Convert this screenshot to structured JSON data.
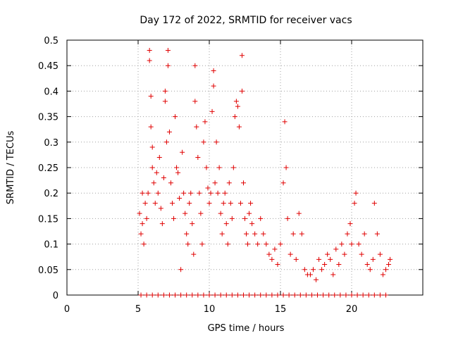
{
  "chart_data": {
    "type": "scatter",
    "title": "Day 172 of 2022, SRMTID for receiver vacs",
    "xlabel": "GPS time / hours",
    "ylabel": "SRMTID / TECUs",
    "xlim": [
      0,
      25
    ],
    "ylim": [
      0,
      0.5
    ],
    "grid": true,
    "x_ticks": [
      0,
      5,
      10,
      15,
      20
    ],
    "x_tick_labels": [
      "0",
      "5",
      "10",
      "15",
      "20"
    ],
    "y_ticks": [
      0,
      0.05,
      0.1,
      0.15,
      0.2,
      0.25,
      0.3,
      0.35,
      0.4,
      0.45,
      0.5
    ],
    "y_tick_labels": [
      "0",
      "0.05",
      "0.1",
      "0.15",
      "0.2",
      "0.25",
      "0.3",
      "0.35",
      "0.4",
      "0.45",
      "0.5"
    ],
    "marker": "+",
    "series": [
      {
        "name": "SRMTID",
        "color": "#e00000",
        "points": [
          [
            5.1,
            0.16
          ],
          [
            5.2,
            0.12
          ],
          [
            5.3,
            0.14
          ],
          [
            5.3,
            0.2
          ],
          [
            5.4,
            0.1
          ],
          [
            5.5,
            0.18
          ],
          [
            5.6,
            0.15
          ],
          [
            5.7,
            0.2
          ],
          [
            5.8,
            0.48
          ],
          [
            5.8,
            0.46
          ],
          [
            5.9,
            0.39
          ],
          [
            5.9,
            0.33
          ],
          [
            6.0,
            0.29
          ],
          [
            6.0,
            0.25
          ],
          [
            6.1,
            0.22
          ],
          [
            6.2,
            0.18
          ],
          [
            6.3,
            0.24
          ],
          [
            6.4,
            0.2
          ],
          [
            6.5,
            0.27
          ],
          [
            6.6,
            0.17
          ],
          [
            6.7,
            0.14
          ],
          [
            6.8,
            0.23
          ],
          [
            6.9,
            0.38
          ],
          [
            6.9,
            0.4
          ],
          [
            7.0,
            0.3
          ],
          [
            7.1,
            0.48
          ],
          [
            7.1,
            0.45
          ],
          [
            7.2,
            0.32
          ],
          [
            7.3,
            0.22
          ],
          [
            7.4,
            0.18
          ],
          [
            7.5,
            0.15
          ],
          [
            7.6,
            0.35
          ],
          [
            7.7,
            0.25
          ],
          [
            7.8,
            0.24
          ],
          [
            7.9,
            0.19
          ],
          [
            8.0,
            0.05
          ],
          [
            8.1,
            0.28
          ],
          [
            8.2,
            0.2
          ],
          [
            8.3,
            0.16
          ],
          [
            8.4,
            0.12
          ],
          [
            8.5,
            0.1
          ],
          [
            8.6,
            0.18
          ],
          [
            8.7,
            0.2
          ],
          [
            8.8,
            0.14
          ],
          [
            8.9,
            0.08
          ],
          [
            9.0,
            0.45
          ],
          [
            9.0,
            0.38
          ],
          [
            9.1,
            0.33
          ],
          [
            9.2,
            0.27
          ],
          [
            9.3,
            0.2
          ],
          [
            9.4,
            0.16
          ],
          [
            9.5,
            0.1
          ],
          [
            9.6,
            0.3
          ],
          [
            9.7,
            0.34
          ],
          [
            9.8,
            0.25
          ],
          [
            9.9,
            0.21
          ],
          [
            10.0,
            0.18
          ],
          [
            10.1,
            0.2
          ],
          [
            10.2,
            0.36
          ],
          [
            10.3,
            0.44
          ],
          [
            10.3,
            0.41
          ],
          [
            10.4,
            0.22
          ],
          [
            10.5,
            0.3
          ],
          [
            10.6,
            0.2
          ],
          [
            10.7,
            0.25
          ],
          [
            10.8,
            0.16
          ],
          [
            10.9,
            0.12
          ],
          [
            11.0,
            0.18
          ],
          [
            11.1,
            0.2
          ],
          [
            11.2,
            0.14
          ],
          [
            11.3,
            0.1
          ],
          [
            11.4,
            0.22
          ],
          [
            11.5,
            0.18
          ],
          [
            11.6,
            0.15
          ],
          [
            11.7,
            0.25
          ],
          [
            11.8,
            0.35
          ],
          [
            11.9,
            0.38
          ],
          [
            12.0,
            0.37
          ],
          [
            12.1,
            0.33
          ],
          [
            12.2,
            0.18
          ],
          [
            12.3,
            0.47
          ],
          [
            12.3,
            0.4
          ],
          [
            12.4,
            0.22
          ],
          [
            12.5,
            0.15
          ],
          [
            12.6,
            0.12
          ],
          [
            12.7,
            0.1
          ],
          [
            12.8,
            0.16
          ],
          [
            12.9,
            0.18
          ],
          [
            13.0,
            0.14
          ],
          [
            13.2,
            0.12
          ],
          [
            13.4,
            0.1
          ],
          [
            13.6,
            0.15
          ],
          [
            13.8,
            0.12
          ],
          [
            14.0,
            0.1
          ],
          [
            14.2,
            0.08
          ],
          [
            14.4,
            0.07
          ],
          [
            14.6,
            0.09
          ],
          [
            14.8,
            0.06
          ],
          [
            15.0,
            0.1
          ],
          [
            15.2,
            0.22
          ],
          [
            15.3,
            0.34
          ],
          [
            15.4,
            0.25
          ],
          [
            15.5,
            0.15
          ],
          [
            15.7,
            0.08
          ],
          [
            15.9,
            0.12
          ],
          [
            16.1,
            0.07
          ],
          [
            16.3,
            0.16
          ],
          [
            16.5,
            0.12
          ],
          [
            16.7,
            0.05
          ],
          [
            16.9,
            0.04
          ],
          [
            17.1,
            0.04
          ],
          [
            17.3,
            0.05
          ],
          [
            17.5,
            0.03
          ],
          [
            17.7,
            0.07
          ],
          [
            17.9,
            0.05
          ],
          [
            18.1,
            0.06
          ],
          [
            18.3,
            0.08
          ],
          [
            18.5,
            0.07
          ],
          [
            18.7,
            0.04
          ],
          [
            18.9,
            0.09
          ],
          [
            19.1,
            0.06
          ],
          [
            19.3,
            0.1
          ],
          [
            19.5,
            0.08
          ],
          [
            19.7,
            0.12
          ],
          [
            19.9,
            0.14
          ],
          [
            20.0,
            0.1
          ],
          [
            20.2,
            0.18
          ],
          [
            20.3,
            0.2
          ],
          [
            20.5,
            0.1
          ],
          [
            20.7,
            0.08
          ],
          [
            20.9,
            0.12
          ],
          [
            21.1,
            0.06
          ],
          [
            21.3,
            0.05
          ],
          [
            21.5,
            0.07
          ],
          [
            21.6,
            0.18
          ],
          [
            21.8,
            0.12
          ],
          [
            22.0,
            0.08
          ],
          [
            22.2,
            0.04
          ],
          [
            22.4,
            0.05
          ],
          [
            22.6,
            0.06
          ],
          [
            22.7,
            0.07
          ]
        ],
        "baseline_points": [
          [
            5.2,
            0
          ],
          [
            5.6,
            0
          ],
          [
            6.0,
            0
          ],
          [
            6.4,
            0
          ],
          [
            6.8,
            0
          ],
          [
            7.2,
            0
          ],
          [
            7.6,
            0
          ],
          [
            8.0,
            0
          ],
          [
            8.4,
            0
          ],
          [
            8.8,
            0
          ],
          [
            9.2,
            0
          ],
          [
            9.6,
            0
          ],
          [
            10.0,
            0
          ],
          [
            10.4,
            0
          ],
          [
            10.8,
            0
          ],
          [
            11.2,
            0
          ],
          [
            11.6,
            0
          ],
          [
            12.0,
            0
          ],
          [
            12.4,
            0
          ],
          [
            12.8,
            0
          ],
          [
            13.2,
            0
          ],
          [
            13.6,
            0
          ],
          [
            14.0,
            0
          ],
          [
            14.4,
            0
          ],
          [
            14.8,
            0
          ],
          [
            15.2,
            0
          ],
          [
            15.6,
            0
          ],
          [
            16.0,
            0
          ],
          [
            16.4,
            0
          ],
          [
            16.8,
            0
          ],
          [
            17.2,
            0
          ],
          [
            17.6,
            0
          ],
          [
            18.0,
            0
          ],
          [
            18.4,
            0
          ],
          [
            18.8,
            0
          ],
          [
            19.2,
            0
          ],
          [
            19.6,
            0
          ],
          [
            20.0,
            0
          ],
          [
            20.4,
            0
          ],
          [
            20.8,
            0
          ],
          [
            21.2,
            0
          ],
          [
            21.6,
            0
          ],
          [
            22.0,
            0
          ],
          [
            22.4,
            0
          ]
        ]
      }
    ]
  }
}
